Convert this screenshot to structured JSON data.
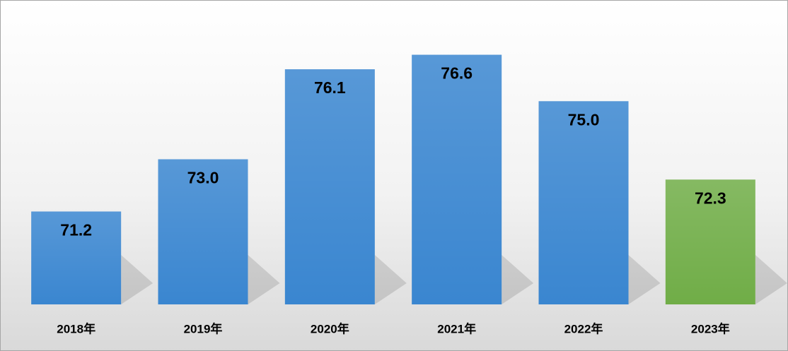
{
  "chart_data": {
    "type": "bar",
    "categories": [
      "2018年",
      "2019年",
      "2020年",
      "2021年",
      "2022年",
      "2023年"
    ],
    "values": [
      71.2,
      73.0,
      76.1,
      76.6,
      75.0,
      72.3
    ],
    "value_labels": [
      "71.2",
      "73.0",
      "76.1",
      "76.6",
      "75.0",
      "72.3"
    ],
    "colors": [
      "#3a86d0",
      "#3a86d0",
      "#3a86d0",
      "#3a86d0",
      "#3a86d0",
      "#70ad47"
    ],
    "ylim": [
      68,
      78
    ]
  }
}
